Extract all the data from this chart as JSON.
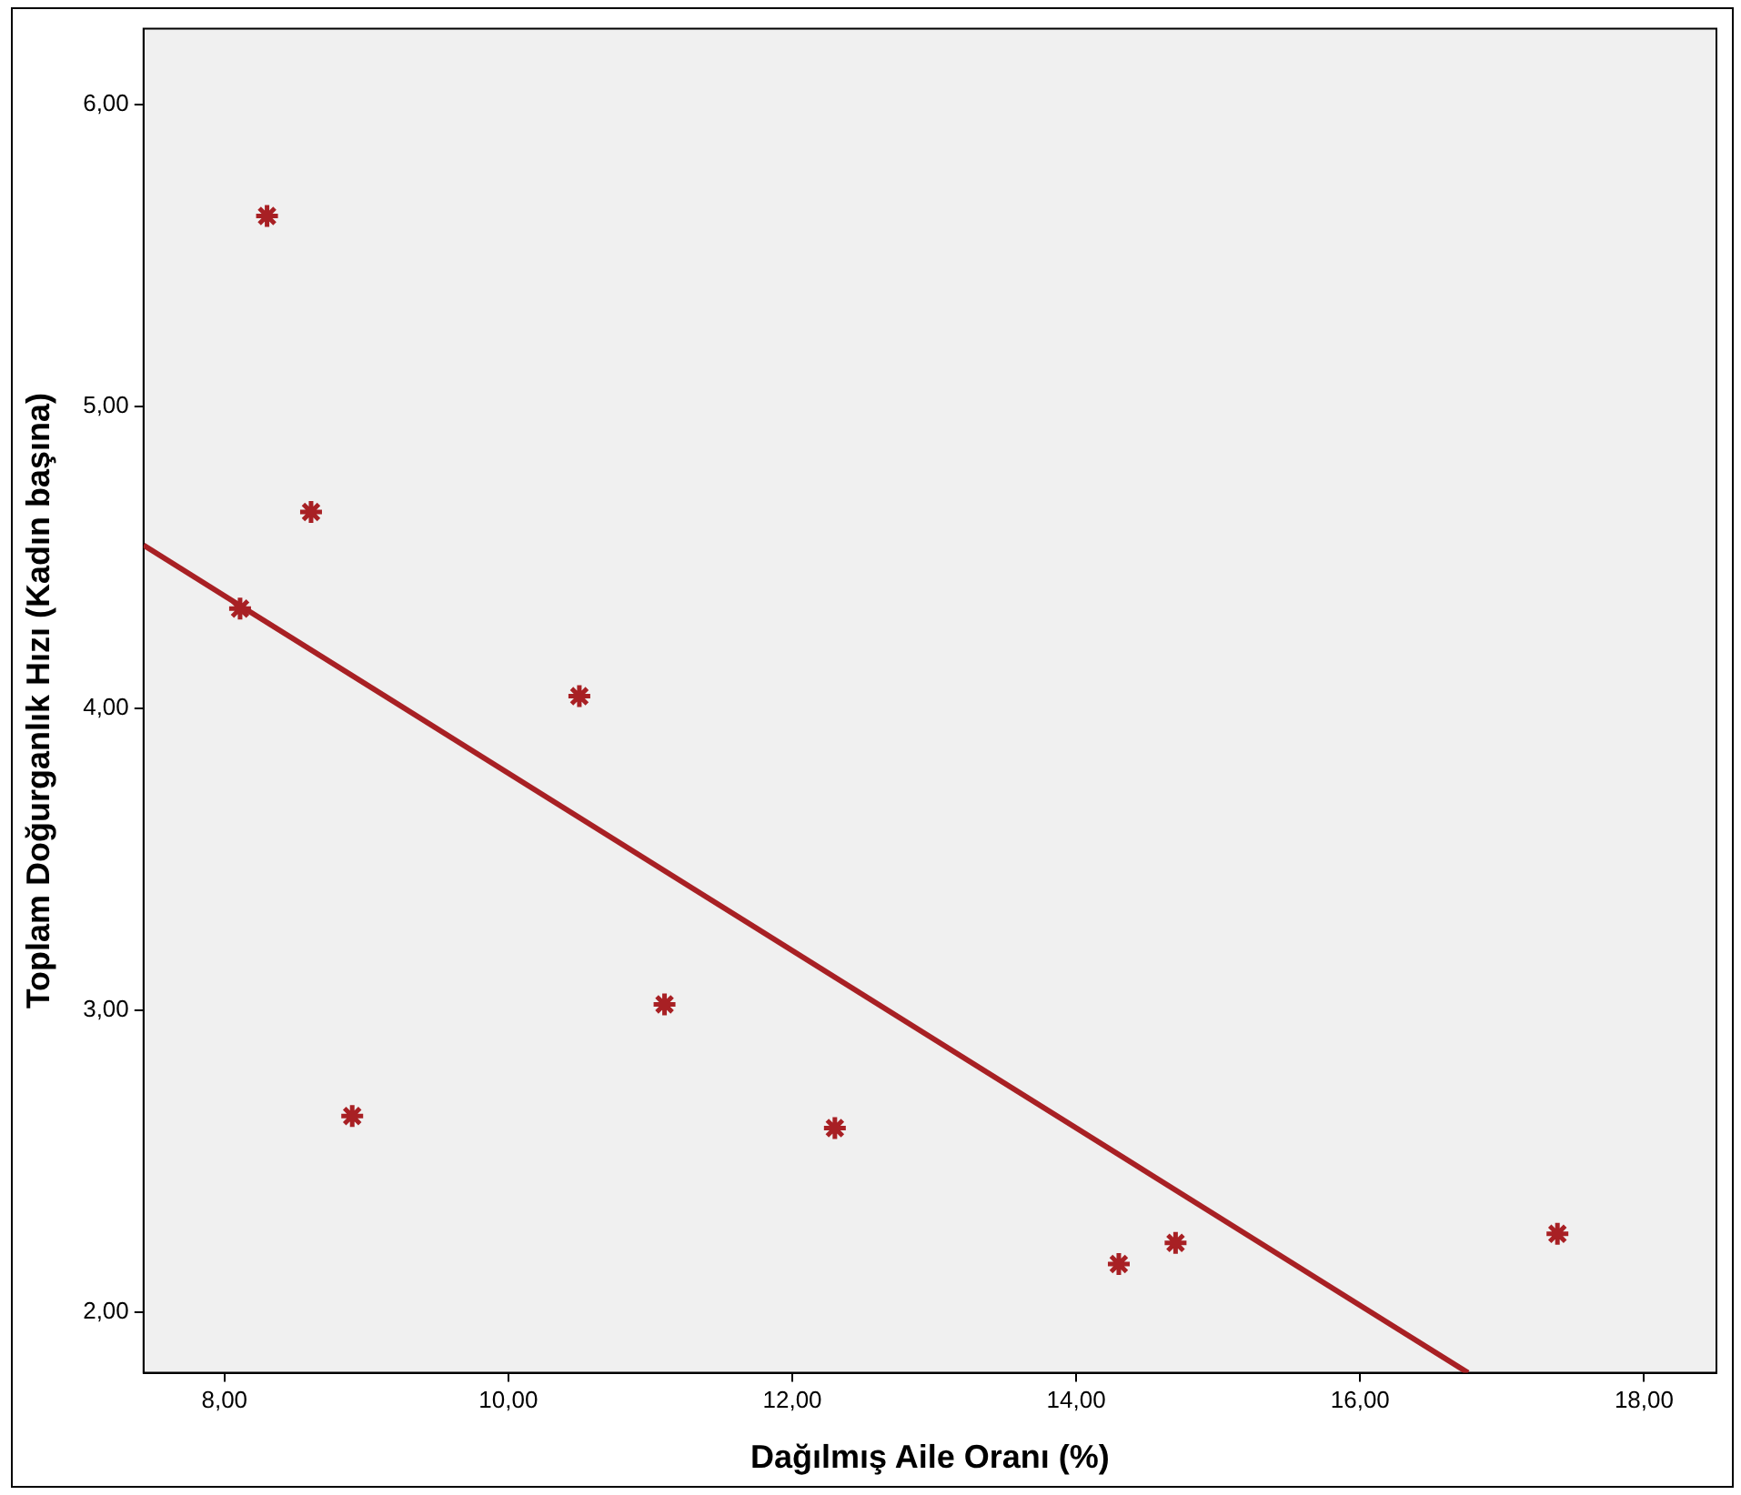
{
  "chart_data": {
    "type": "scatter",
    "xlabel": "Dağılmış Aile Oranı (%)",
    "ylabel": "Toplam Doğurganlık Hızı (Kadın başına)",
    "xlim": [
      7.43,
      18.51
    ],
    "ylim": [
      1.8,
      6.25
    ],
    "xticks": [
      {
        "value": 8,
        "label": "8,00"
      },
      {
        "value": 10,
        "label": "10,00"
      },
      {
        "value": 12,
        "label": "12,00"
      },
      {
        "value": 14,
        "label": "14,00"
      },
      {
        "value": 16,
        "label": "16,00"
      },
      {
        "value": 18,
        "label": "18,00"
      }
    ],
    "yticks": [
      {
        "value": 2,
        "label": "2,00"
      },
      {
        "value": 3,
        "label": "3,00"
      },
      {
        "value": 4,
        "label": "4,00"
      },
      {
        "value": 5,
        "label": "5,00"
      },
      {
        "value": 6,
        "label": "6,00"
      }
    ],
    "grid": false,
    "legend": false,
    "marker": "cross",
    "series": [
      {
        "type": "scatter",
        "color": "#a82024",
        "x": [
          8.3,
          8.61,
          8.11,
          10.5,
          11.1,
          8.9,
          12.3,
          14.3,
          14.7,
          17.39
        ],
        "values": [
          5.63,
          4.65,
          4.33,
          4.04,
          3.02,
          2.65,
          2.61,
          2.16,
          2.23,
          2.26
        ]
      },
      {
        "type": "line",
        "color": "#a82024",
        "marker": "none",
        "line_style": "solid",
        "x": [
          7.43,
          16.76
        ],
        "values": [
          4.54,
          1.8
        ]
      }
    ]
  }
}
